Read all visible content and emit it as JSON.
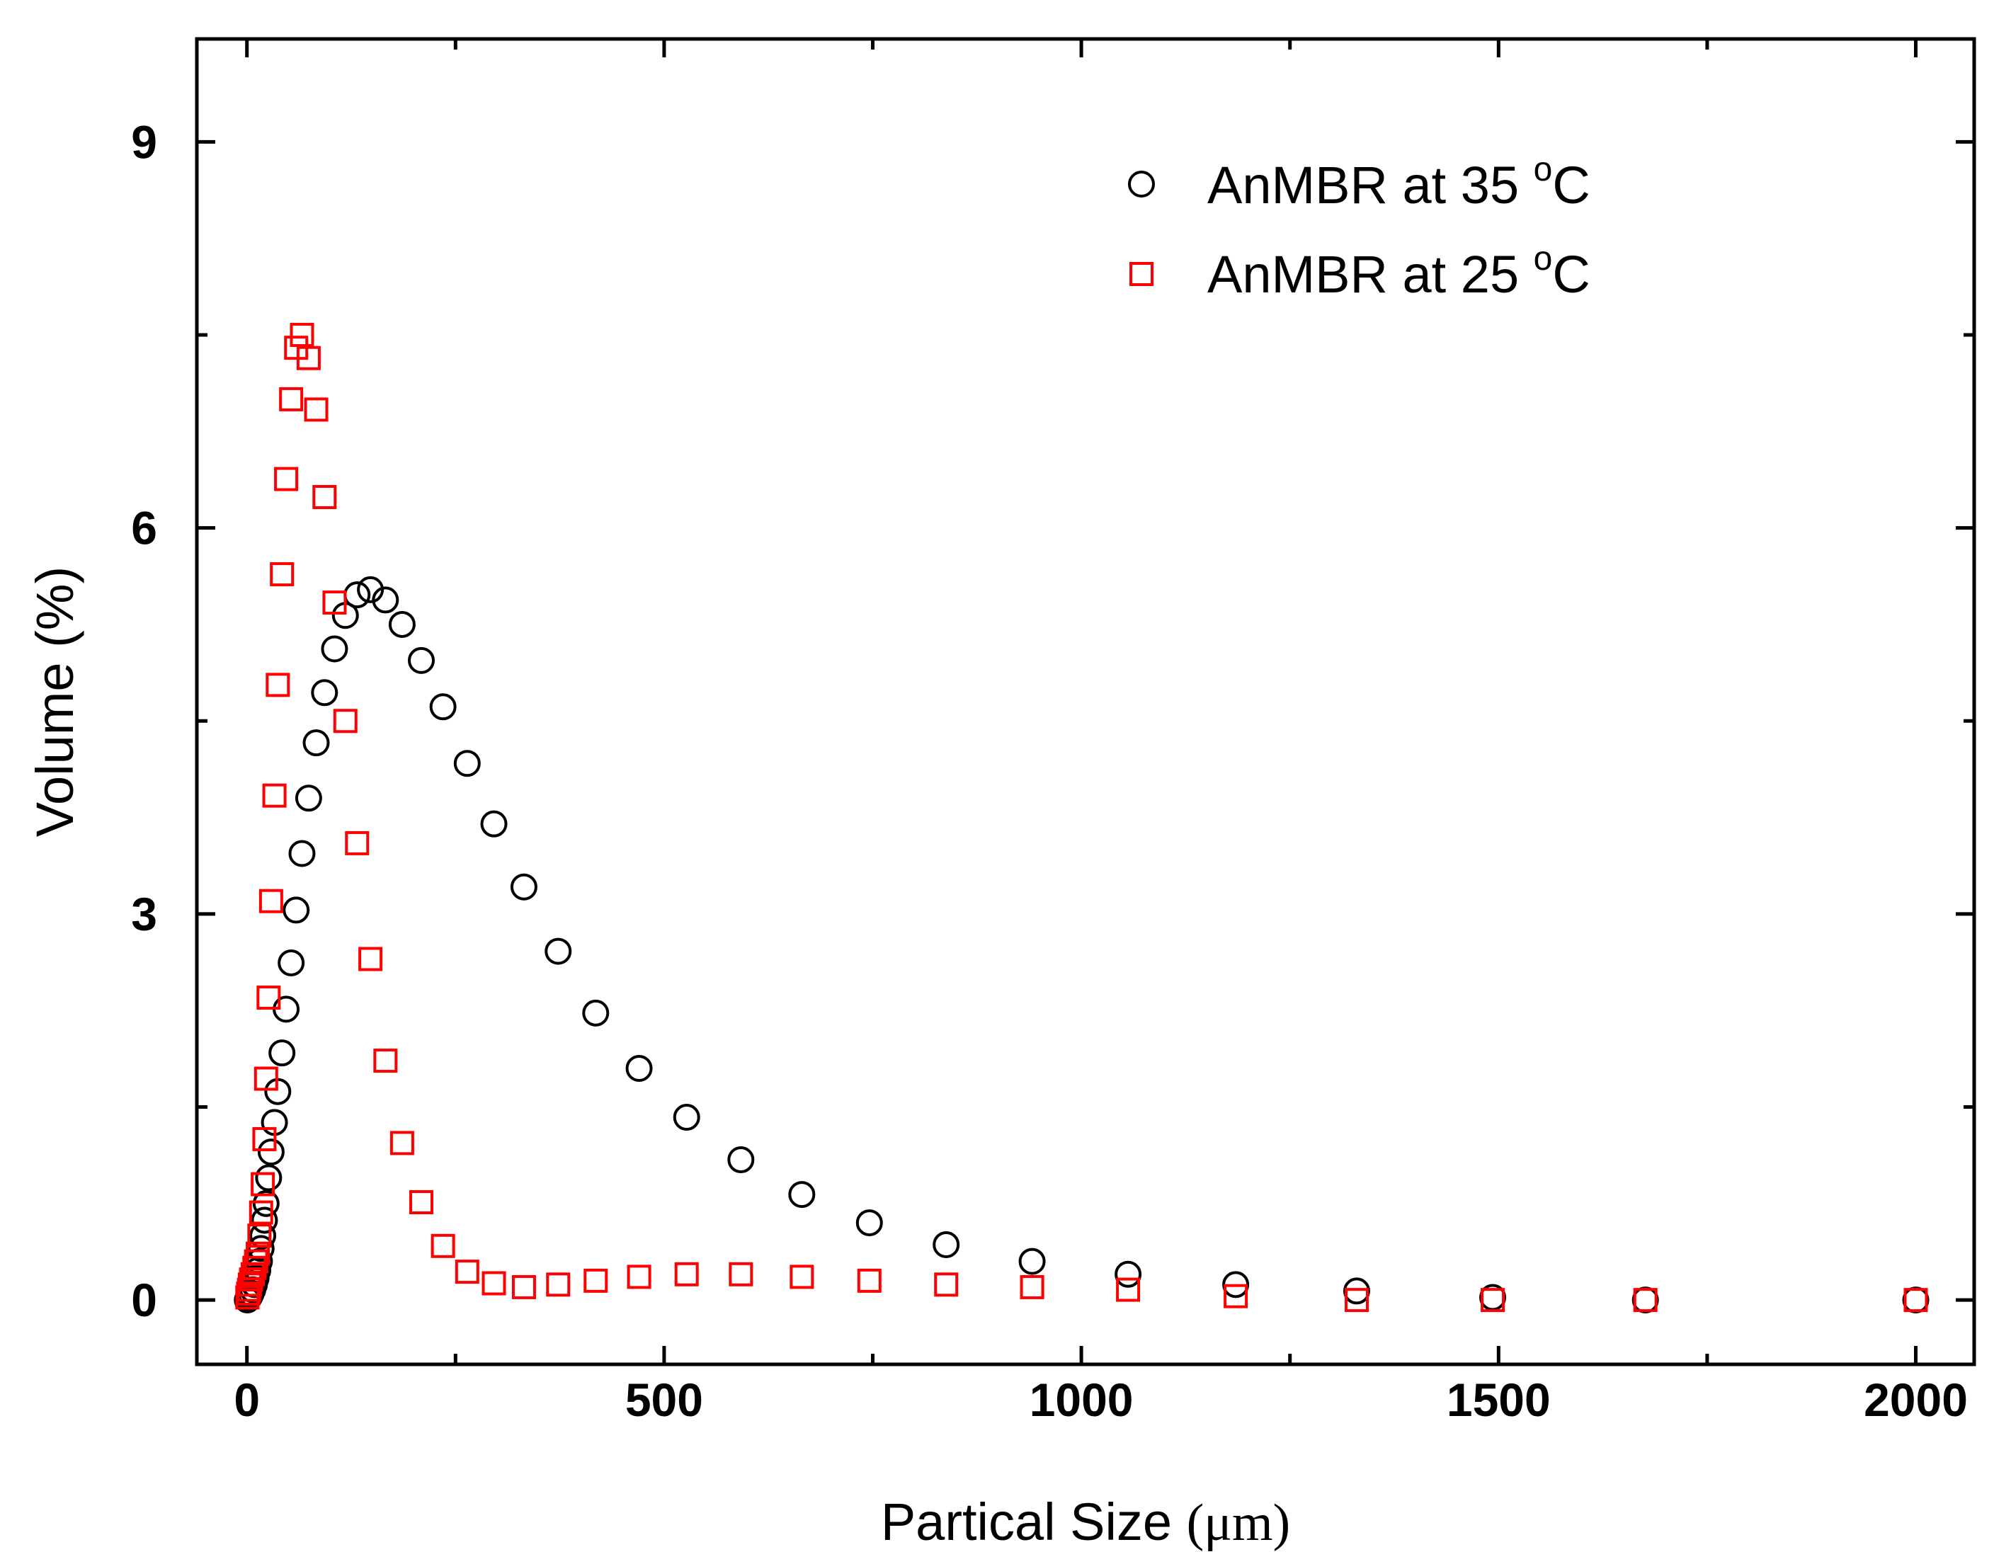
{
  "chart_data": {
    "type": "scatter",
    "title": "",
    "xlabel": "Partical Size",
    "xlabel_unit": "(μm)",
    "ylabel": "Volume (%)",
    "xlim": [
      -60,
      2070
    ],
    "ylim": [
      -0.5,
      9.8
    ],
    "x_ticks": [
      0,
      500,
      1000,
      1500,
      2000
    ],
    "x_tick_labels": [
      "0",
      "500",
      "1000",
      "1500",
      "2000"
    ],
    "y_ticks": [
      0,
      3,
      6,
      9
    ],
    "y_tick_labels": [
      "0",
      "3",
      "6",
      "9"
    ],
    "legend_position": "top-right",
    "series": [
      {
        "name": "AnMBR at 35 °C",
        "label_prefix": "AnMBR at 35 ",
        "label_sup": "o",
        "label_suffix": "C",
        "marker": "circle",
        "color": "#000000",
        "x": [
          0.5,
          1.5,
          2.5,
          3.5,
          5,
          7,
          9,
          11,
          13,
          15,
          17,
          19,
          21,
          23,
          26,
          29,
          33,
          37,
          42,
          47,
          53,
          59,
          66,
          74,
          83,
          93,
          105,
          118,
          132,
          148,
          166,
          186,
          209,
          235,
          264,
          296,
          332,
          373,
          418,
          470,
          527,
          592,
          665,
          746,
          838,
          941,
          1056,
          1185,
          1330,
          1493,
          1676,
          2000
        ],
        "y": [
          0.0,
          0.01,
          0.02,
          0.03,
          0.05,
          0.08,
          0.12,
          0.17,
          0.23,
          0.3,
          0.4,
          0.5,
          0.62,
          0.75,
          0.95,
          1.15,
          1.38,
          1.62,
          1.92,
          2.26,
          2.62,
          3.03,
          3.47,
          3.9,
          4.33,
          4.72,
          5.06,
          5.32,
          5.48,
          5.52,
          5.44,
          5.25,
          4.97,
          4.61,
          4.17,
          3.7,
          3.21,
          2.71,
          2.23,
          1.8,
          1.42,
          1.09,
          0.82,
          0.6,
          0.43,
          0.3,
          0.2,
          0.12,
          0.07,
          0.02,
          0.0,
          0.0
        ]
      },
      {
        "name": "AnMBR at 25 °C",
        "label_prefix": "AnMBR at 25 ",
        "label_sup": "o",
        "label_suffix": "C",
        "marker": "square",
        "color": "#ff0000",
        "x": [
          0.5,
          1.5,
          2.5,
          3.5,
          5,
          7,
          9,
          11,
          13,
          15,
          17,
          19,
          21,
          23,
          26,
          29,
          33,
          37,
          42,
          47,
          53,
          59,
          66,
          74,
          83,
          93,
          105,
          118,
          132,
          148,
          166,
          186,
          209,
          235,
          264,
          296,
          332,
          373,
          418,
          470,
          527,
          592,
          665,
          746,
          838,
          941,
          1056,
          1185,
          1330,
          1493,
          1676,
          2000
        ],
        "y": [
          0.02,
          0.05,
          0.08,
          0.12,
          0.16,
          0.2,
          0.25,
          0.3,
          0.36,
          0.5,
          0.68,
          0.9,
          1.25,
          1.72,
          2.35,
          3.1,
          3.92,
          4.78,
          5.64,
          6.38,
          7.0,
          7.4,
          7.5,
          7.32,
          6.92,
          6.24,
          5.42,
          4.5,
          3.55,
          2.65,
          1.86,
          1.22,
          0.76,
          0.42,
          0.22,
          0.13,
          0.1,
          0.12,
          0.15,
          0.18,
          0.2,
          0.2,
          0.18,
          0.15,
          0.12,
          0.1,
          0.08,
          0.03,
          0.0,
          0.0,
          0.0,
          0.0
        ]
      }
    ]
  }
}
